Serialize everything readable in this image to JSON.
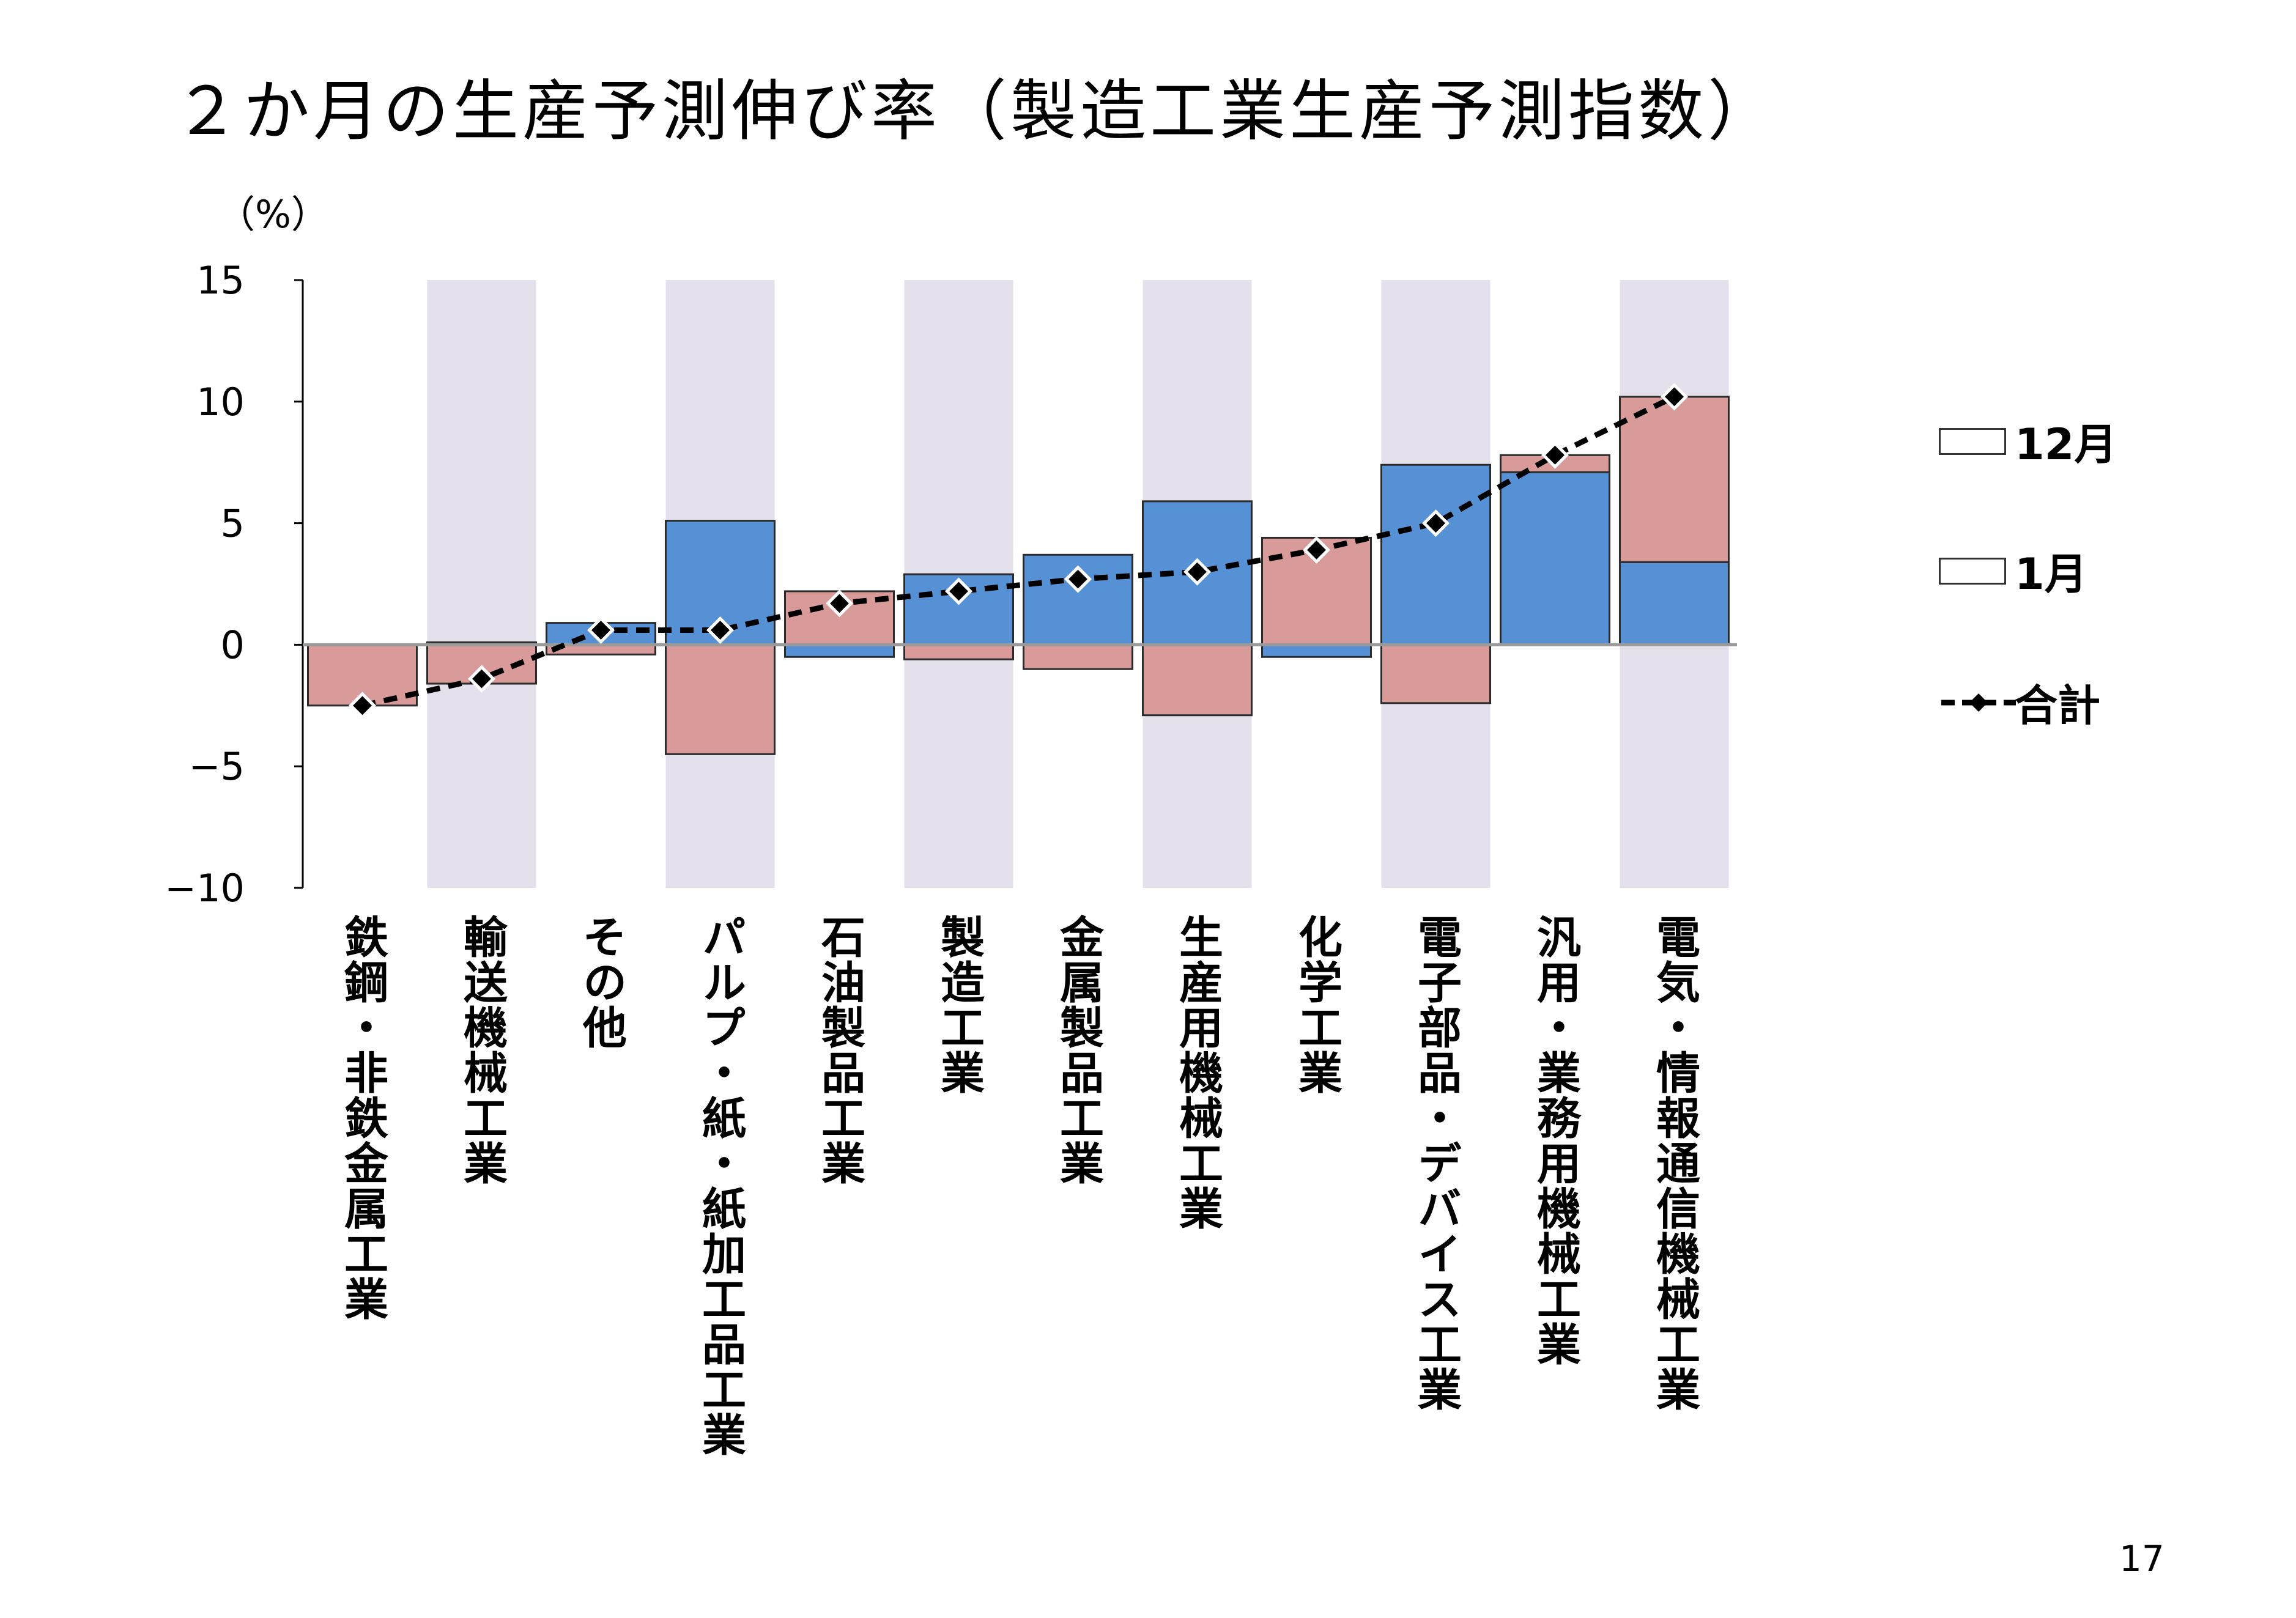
{
  "page": {
    "title": "２か月の生産予測伸び率（製造工業生産予測指数）",
    "unit_label": "（%）",
    "page_number": "17"
  },
  "colors": {
    "dec": "#5591d4",
    "jan": "#d99a9a",
    "band": "#e4e0ec",
    "total": "#000000"
  },
  "legend": {
    "dec": "12月",
    "jan": "1月",
    "total": "合計"
  },
  "chart_data": {
    "type": "bar",
    "subtype": "stacked bar with line",
    "categories": [
      "鉄鋼・非鉄金属工業",
      "輸送機械工業",
      "その他",
      "パルプ・紙・紙加工品工業",
      "石油製品工業",
      "製造工業",
      "金属製品工業",
      "生産用機械工業",
      "化学工業",
      "電子部品・デバイス工業",
      "汎用・業務用機械工業",
      "電気・情報通信機械工業"
    ],
    "series": [
      {
        "name": "12月",
        "type": "bar",
        "values": [
          0.0,
          0.1,
          0.9,
          5.1,
          -0.5,
          2.9,
          3.7,
          5.9,
          -0.5,
          7.4,
          7.1,
          3.4
        ]
      },
      {
        "name": "1月",
        "type": "bar",
        "values": [
          -2.5,
          -1.6,
          -0.4,
          -4.5,
          2.2,
          -0.6,
          -1.0,
          -2.9,
          4.4,
          -2.4,
          0.7,
          6.8
        ]
      },
      {
        "name": "合計",
        "type": "line",
        "style": "dashed",
        "marker": "diamond",
        "values": [
          -2.5,
          -1.4,
          0.6,
          0.6,
          1.7,
          2.2,
          2.7,
          3.0,
          3.9,
          5.0,
          7.8,
          10.2
        ]
      }
    ],
    "ylim": [
      -10,
      15
    ],
    "yticks": [
      -10,
      -5,
      0,
      5,
      10,
      15
    ],
    "ytick_labels": [
      "−10",
      "−5",
      "0",
      "5",
      "10",
      "15"
    ],
    "ylabel": "（%）",
    "legend_position": "right",
    "alternating_bands": true
  }
}
